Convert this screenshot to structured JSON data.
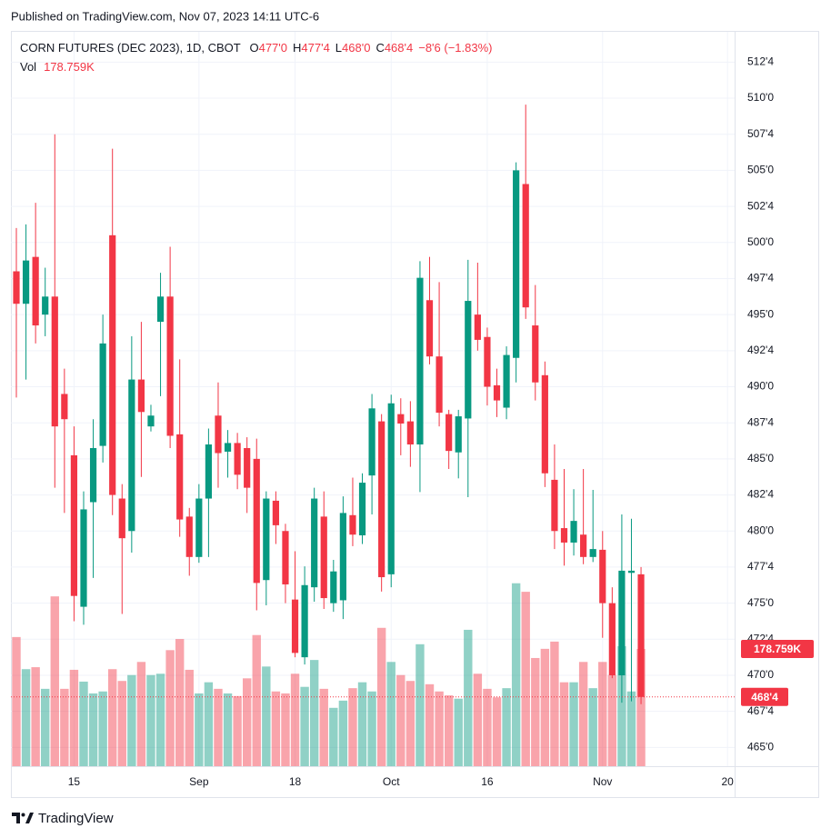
{
  "published": "Published on TradingView.com, Nov 07, 2023 14:11 UTC-6",
  "footer": {
    "brand": "TradingView"
  },
  "chart_data": {
    "type": "candlestick",
    "header": {
      "symbol": "CORN FUTURES (DEC 2023), 1D, CBOT",
      "ohlc": [
        {
          "key": "O",
          "value": "477'0"
        },
        {
          "key": "H",
          "value": "477'4"
        },
        {
          "key": "L",
          "value": "468'0"
        },
        {
          "key": "C",
          "value": "468'4"
        }
      ],
      "change": "−8'6 (−1.83%)",
      "vol_key": "Vol"
    },
    "last_price_label": "468'4",
    "last_volume_label": "178.759K",
    "up_color": "#089981",
    "down_color": "#f23645",
    "volume_opacity": 0.45,
    "grid": true,
    "x": [
      "2023-08-07",
      "2023-08-08",
      "2023-08-09",
      "2023-08-10",
      "2023-08-11",
      "2023-08-14",
      "2023-08-15",
      "2023-08-16",
      "2023-08-17",
      "2023-08-18",
      "2023-08-21",
      "2023-08-22",
      "2023-08-23",
      "2023-08-24",
      "2023-08-25",
      "2023-08-28",
      "2023-08-29",
      "2023-08-30",
      "2023-08-31",
      "2023-09-01",
      "2023-09-05",
      "2023-09-06",
      "2023-09-07",
      "2023-09-08",
      "2023-09-11",
      "2023-09-12",
      "2023-09-13",
      "2023-09-14",
      "2023-09-15",
      "2023-09-18",
      "2023-09-19",
      "2023-09-20",
      "2023-09-21",
      "2023-09-22",
      "2023-09-25",
      "2023-09-26",
      "2023-09-27",
      "2023-09-28",
      "2023-09-29",
      "2023-10-02",
      "2023-10-03",
      "2023-10-04",
      "2023-10-05",
      "2023-10-06",
      "2023-10-09",
      "2023-10-10",
      "2023-10-11",
      "2023-10-12",
      "2023-10-13",
      "2023-10-16",
      "2023-10-17",
      "2023-10-18",
      "2023-10-19",
      "2023-10-20",
      "2023-10-23",
      "2023-10-24",
      "2023-10-25",
      "2023-10-26",
      "2023-10-27",
      "2023-10-30",
      "2023-10-31",
      "2023-11-01",
      "2023-11-02",
      "2023-11-03",
      "2023-11-06",
      "2023-11-07"
    ],
    "open": [
      498,
      495.75,
      499,
      495,
      496.25,
      489.5,
      485.25,
      474.75,
      482,
      485.9,
      500.5,
      482.25,
      480,
      490.5,
      487.25,
      494.5,
      496.25,
      486.7,
      481,
      478.2,
      482.25,
      488,
      485.5,
      486.1,
      485.75,
      485,
      476.6,
      482.1,
      480,
      475.25,
      471.25,
      476.1,
      481,
      475,
      475.2,
      481.1,
      479.7,
      483.85,
      487.6,
      477,
      488.1,
      487.6,
      486,
      496,
      492.1,
      488.1,
      485.45,
      487.8,
      495,
      493.45,
      490.1,
      488.55,
      492,
      504.05,
      494.25,
      490.8,
      483.55,
      480.2,
      479.2,
      479.75,
      478.2,
      478.7,
      475,
      470,
      477.1,
      477
    ],
    "high": [
      501,
      501.25,
      502.75,
      498.25,
      507.5,
      491.25,
      487.25,
      482.75,
      487.75,
      495,
      506.5,
      483.25,
      493.5,
      494.5,
      488.75,
      497.9,
      499.7,
      491.9,
      481.6,
      483.25,
      487.1,
      490.3,
      487,
      486.8,
      486.5,
      486.4,
      482.75,
      482.75,
      480.5,
      478.6,
      477.55,
      483,
      482.75,
      478,
      482.4,
      483.7,
      484,
      489.5,
      488.1,
      489.45,
      489.2,
      489,
      498.7,
      499,
      497.25,
      488.4,
      488.4,
      498.8,
      498.6,
      494.1,
      491.25,
      492.8,
      505.55,
      509.55,
      497.05,
      491.75,
      486,
      484.3,
      482.9,
      484.3,
      482.85,
      480,
      476.1,
      481.15,
      480.85,
      477.5
    ],
    "low": [
      489.25,
      490.5,
      493,
      493.5,
      483,
      481.25,
      473.75,
      473.5,
      476.75,
      484.75,
      481.1,
      474.25,
      478.5,
      483.75,
      486.9,
      489.35,
      485.75,
      479.6,
      476.9,
      477.8,
      478.2,
      483,
      483.7,
      482.9,
      481.25,
      474.5,
      474.85,
      479.1,
      475,
      471.25,
      470.75,
      475.1,
      474.6,
      474.4,
      473.9,
      478.95,
      479.1,
      481.15,
      475.8,
      476.1,
      485.25,
      484.45,
      482.7,
      491.55,
      487.25,
      484.3,
      483.65,
      482.35,
      492.5,
      488.7,
      487.9,
      487.75,
      490.3,
      494.7,
      489.05,
      483.05,
      478.75,
      477.6,
      478.3,
      477.7,
      477.85,
      472.6,
      469.8,
      468.1,
      468.2,
      468
    ],
    "close": [
      495.75,
      498.75,
      494.25,
      496.25,
      487.25,
      487.75,
      475.5,
      481.5,
      485.75,
      493,
      482.5,
      479.5,
      490.5,
      488.25,
      488,
      496.25,
      486.6,
      480.8,
      478.2,
      482.25,
      486,
      485.4,
      486.1,
      483.9,
      483,
      476.4,
      482.25,
      480.4,
      476.3,
      471.55,
      476.25,
      482.25,
      475.35,
      477.2,
      481.25,
      479.75,
      483.35,
      488.5,
      476.8,
      488.85,
      487.45,
      486,
      497.55,
      492.1,
      488.2,
      485.55,
      487.95,
      495.95,
      493.25,
      490,
      489.05,
      492.2,
      505,
      495.5,
      490.3,
      484,
      480,
      479.2,
      480.7,
      478.2,
      478.75,
      475,
      470,
      477.25,
      477.25,
      468.5
    ],
    "volume": [
      197000,
      148000,
      151000,
      118000,
      259000,
      118000,
      147000,
      129000,
      111000,
      114000,
      148000,
      130000,
      139000,
      159000,
      139000,
      141000,
      177000,
      194000,
      147000,
      111000,
      128000,
      118000,
      111000,
      107000,
      134000,
      200000,
      152000,
      114000,
      111000,
      141000,
      121000,
      162000,
      118000,
      89000,
      100000,
      119000,
      128000,
      114000,
      211000,
      159000,
      139000,
      130000,
      186000,
      125000,
      114000,
      108000,
      103000,
      208000,
      141000,
      118000,
      105000,
      119000,
      279000,
      266000,
      165000,
      179000,
      190000,
      128000,
      128000,
      159000,
      119000,
      159000,
      139000,
      183000,
      114000,
      178759
    ],
    "ylim": [
      463.7,
      514.6
    ],
    "volume_lim": [
      0,
      1120000
    ],
    "yticks": [
      {
        "value": 465,
        "label": "465'0"
      },
      {
        "value": 467.5,
        "label": "467'4"
      },
      {
        "value": 470,
        "label": "470'0"
      },
      {
        "value": 472.5,
        "label": "472'4"
      },
      {
        "value": 475,
        "label": "475'0"
      },
      {
        "value": 477.5,
        "label": "477'4"
      },
      {
        "value": 480,
        "label": "480'0"
      },
      {
        "value": 482.5,
        "label": "482'4"
      },
      {
        "value": 485,
        "label": "485'0"
      },
      {
        "value": 487.5,
        "label": "487'4"
      },
      {
        "value": 490,
        "label": "490'0"
      },
      {
        "value": 492.5,
        "label": "492'4"
      },
      {
        "value": 495,
        "label": "495'0"
      },
      {
        "value": 497.5,
        "label": "497'4"
      },
      {
        "value": 500,
        "label": "500'0"
      },
      {
        "value": 502.5,
        "label": "502'4"
      },
      {
        "value": 505,
        "label": "505'0"
      },
      {
        "value": 507.5,
        "label": "507'4"
      },
      {
        "value": 510,
        "label": "510'0"
      },
      {
        "value": 512.5,
        "label": "512'4"
      }
    ],
    "xticks": [
      {
        "value": "2023-08-15",
        "label": "15"
      },
      {
        "value": "2023-09-01",
        "label": "Sep"
      },
      {
        "value": "2023-09-18",
        "label": "18"
      },
      {
        "value": "2023-10-02",
        "label": "Oct"
      },
      {
        "value": "2023-10-16",
        "label": "16"
      },
      {
        "value": "2023-11-01",
        "label": "Nov"
      },
      {
        "value": "2023-11-20",
        "label": "20"
      }
    ]
  }
}
